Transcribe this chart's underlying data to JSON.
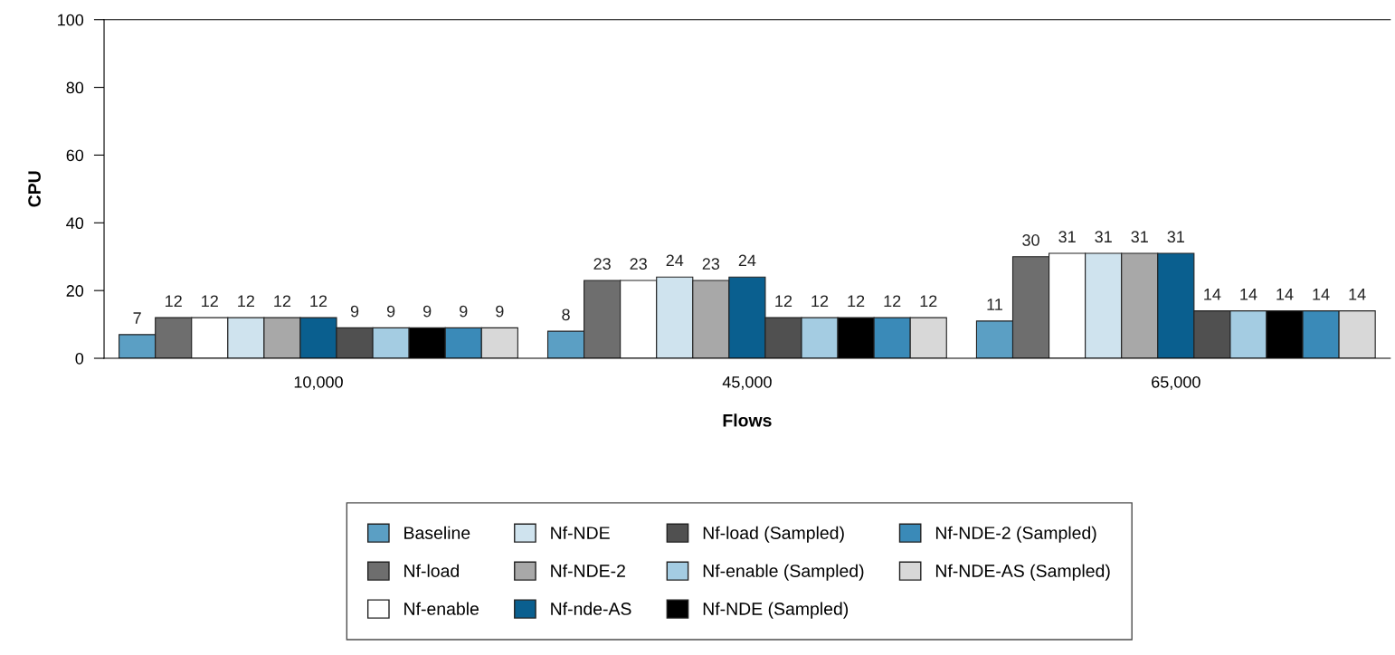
{
  "chart_data": {
    "type": "bar",
    "xlabel": "Flows",
    "ylabel": "CPU",
    "categories": [
      "10,000",
      "45,000",
      "65,000"
    ],
    "ylim": [
      0,
      100
    ],
    "yticks": [
      0,
      20,
      40,
      60,
      80,
      100
    ],
    "grid": false,
    "legend": "bottom",
    "data_labels": true,
    "series": [
      {
        "name": "Baseline",
        "color": "#5b9fc4",
        "values": [
          7,
          8,
          11
        ]
      },
      {
        "name": "Nf-load",
        "color": "#6e6e6e",
        "values": [
          12,
          23,
          30
        ]
      },
      {
        "name": "Nf-enable",
        "color": "#ffffff",
        "values": [
          12,
          23,
          31
        ]
      },
      {
        "name": "Nf-NDE",
        "color": "#cfe3ee",
        "values": [
          12,
          24,
          31
        ]
      },
      {
        "name": "Nf-NDE-2",
        "color": "#a8a8a8",
        "values": [
          12,
          23,
          31
        ]
      },
      {
        "name": "Nf-nde-AS",
        "color": "#0a5f8f",
        "values": [
          12,
          24,
          31
        ]
      },
      {
        "name": "Nf-load (Sampled)",
        "color": "#505050",
        "values": [
          9,
          12,
          14
        ]
      },
      {
        "name": "Nf-enable (Sampled)",
        "color": "#a4cce2",
        "values": [
          9,
          12,
          14
        ]
      },
      {
        "name": "Nf-NDE (Sampled)",
        "color": "#000000",
        "values": [
          9,
          12,
          14
        ]
      },
      {
        "name": "Nf-NDE-2 (Sampled)",
        "color": "#3a8ab8",
        "values": [
          9,
          12,
          14
        ]
      },
      {
        "name": "Nf-NDE-AS (Sampled)",
        "color": "#d8d8d8",
        "values": [
          9,
          12,
          14
        ]
      }
    ]
  }
}
